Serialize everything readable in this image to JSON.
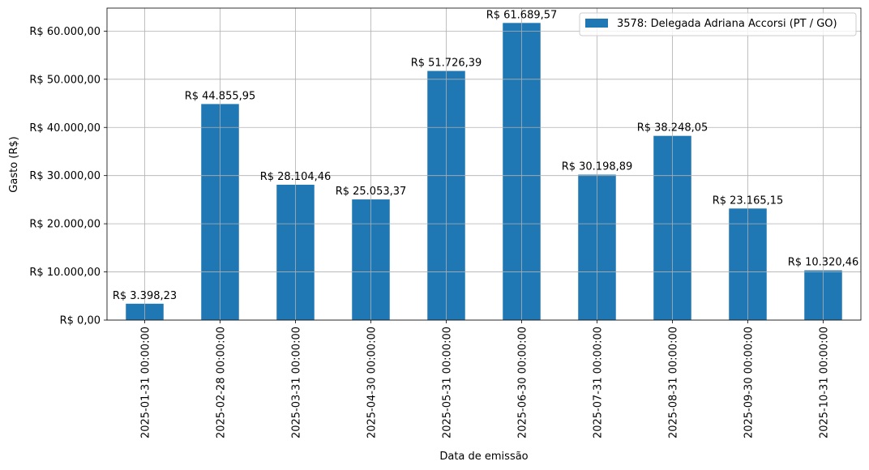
{
  "chart_data": {
    "type": "bar",
    "categories": [
      "2025-01-31 00:00:00",
      "2025-02-28 00:00:00",
      "2025-03-31 00:00:00",
      "2025-04-30 00:00:00",
      "2025-05-31 00:00:00",
      "2025-06-30 00:00:00",
      "2025-07-31 00:00:00",
      "2025-08-31 00:00:00",
      "2025-09-30 00:00:00",
      "2025-10-31 00:00:00"
    ],
    "series": [
      {
        "name": "3578: Delegada Adriana Accorsi (PT / GO)",
        "color": "#1f77b4",
        "values": [
          3398.23,
          44855.95,
          28104.46,
          25053.37,
          51726.39,
          61689.57,
          30198.89,
          38248.05,
          23165.15,
          10320.46
        ],
        "value_labels": [
          "R$ 3.398,23",
          "R$ 44.855,95",
          "R$ 28.104,46",
          "R$ 25.053,37",
          "R$ 51.726,39",
          "R$ 61.689,57",
          "R$ 30.198,89",
          "R$ 38.248,05",
          "R$ 23.165,15",
          "R$ 10.320,46"
        ]
      }
    ],
    "xlabel": "Data de emissão",
    "ylabel": "Gasto (R$)",
    "ylim": [
      0,
      64774
    ],
    "yticks": [
      0,
      10000,
      20000,
      30000,
      40000,
      50000,
      60000
    ],
    "ytick_labels": [
      "R$ 0,00",
      "R$ 10.000,00",
      "R$ 20.000,00",
      "R$ 30.000,00",
      "R$ 40.000,00",
      "R$ 50.000,00",
      "R$ 60.000,00"
    ],
    "grid": true,
    "legend_position": "top-right"
  }
}
